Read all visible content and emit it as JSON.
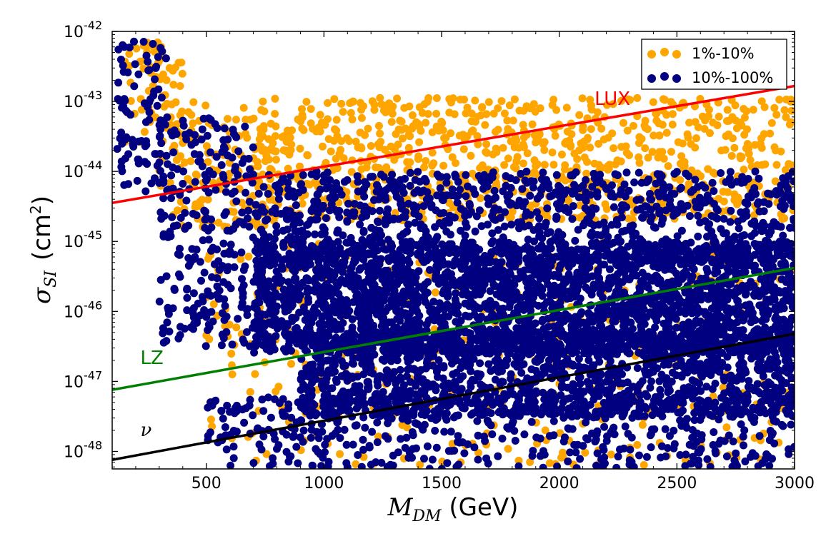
{
  "chart_data": {
    "type": "scatter",
    "xlim": [
      100,
      3000
    ],
    "ylim_log10": [
      -48.25,
      -42
    ],
    "y_scale": "log",
    "x_ticks": [
      500,
      1000,
      1500,
      2000,
      2500,
      3000
    ],
    "y_ticks": [
      {
        "exp": -42,
        "base": "10",
        "sup": "-42"
      },
      {
        "exp": -43,
        "base": "10",
        "sup": "-43"
      },
      {
        "exp": -44,
        "base": "10",
        "sup": "-44"
      },
      {
        "exp": -45,
        "base": "10",
        "sup": "-45"
      },
      {
        "exp": -46,
        "base": "10",
        "sup": "-46"
      },
      {
        "exp": -47,
        "base": "10",
        "sup": "-47"
      },
      {
        "exp": -48,
        "base": "10",
        "sup": "-48"
      }
    ],
    "xlabel": {
      "main": "M",
      "sub": "DM",
      "unit": " (GeV)"
    },
    "ylabel": {
      "main": "σ",
      "sub": "SI",
      "unit_pre": "(cm",
      "unit_sup": "2",
      "unit_post": ")"
    },
    "legend": {
      "placement": "top-right",
      "entries": [
        {
          "label": "1%-10%",
          "color": "#FFA500"
        },
        {
          "label": "10%-100%",
          "color": "#000080"
        }
      ]
    },
    "lines": [
      {
        "name": "LUX",
        "color": "#FF0000",
        "x": [
          100,
          3000
        ],
        "log10_y": [
          -44.45,
          -42.78
        ],
        "label_x": 2150,
        "label_log10_y": -43.05
      },
      {
        "name": "LZ",
        "color": "#008000",
        "x": [
          100,
          3000
        ],
        "log10_y": [
          -47.12,
          -45.38
        ],
        "label_x": 220,
        "label_log10_y": -46.75
      },
      {
        "name": "ν",
        "color": "#000000",
        "x": [
          100,
          3000
        ],
        "log10_y": [
          -48.12,
          -46.32
        ],
        "label_x": 220,
        "label_log10_y": -47.78
      }
    ],
    "series": [
      {
        "name": "1%-10%",
        "color": "#FFA500",
        "regions": [
          {
            "x": [
              150,
              400
            ],
            "log10_y": [
              -43.6,
              -42.1
            ],
            "count": 70
          },
          {
            "x": [
              300,
              800
            ],
            "log10_y": [
              -44.8,
              -43.0
            ],
            "count": 140
          },
          {
            "x": [
              700,
              3000
            ],
            "log10_y": [
              -44.7,
              -42.95
            ],
            "count": 850
          },
          {
            "x": [
              500,
              3000
            ],
            "log10_y": [
              -48.2,
              -45.0
            ],
            "count": 380
          }
        ]
      },
      {
        "name": "10%-100%",
        "color": "#000080",
        "regions": [
          {
            "x": [
              120,
              330
            ],
            "log10_y": [
              -44.3,
              -42.05
            ],
            "count": 90
          },
          {
            "x": [
              300,
              700
            ],
            "log10_y": [
              -46.5,
              -43.2
            ],
            "count": 260
          },
          {
            "x": [
              700,
              3000
            ],
            "log10_y": [
              -45.3,
              -44.0
            ],
            "count": 900
          },
          {
            "x": [
              700,
              3000
            ],
            "log10_y": [
              -46.6,
              -45.0
            ],
            "count": 2600
          },
          {
            "x": [
              900,
              3000
            ],
            "log10_y": [
              -47.5,
              -46.3
            ],
            "count": 1400
          },
          {
            "x": [
              500,
              3000
            ],
            "log10_y": [
              -48.25,
              -47.2
            ],
            "count": 520
          }
        ]
      }
    ]
  }
}
